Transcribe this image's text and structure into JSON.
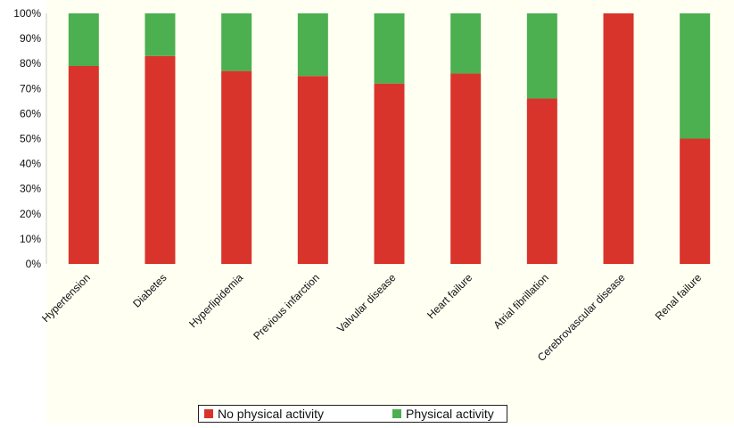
{
  "chart_data": {
    "type": "bar",
    "stacked": true,
    "categories": [
      "Hypertension",
      "Diabetes",
      "Hyperlipidemia",
      "Previous infarction",
      "Valvular disease",
      "Heart failure",
      "Atrial fibrillation",
      "Cerebrovascular disease",
      "Renal failure"
    ],
    "series": [
      {
        "name": "No physical activity",
        "color": "#d8342b",
        "values": [
          79,
          83,
          77,
          75,
          72,
          76,
          66,
          100,
          50
        ]
      },
      {
        "name": "Physical activity",
        "color": "#4caf50",
        "values": [
          21,
          17,
          23,
          25,
          28,
          24,
          34,
          0,
          50
        ]
      }
    ],
    "yticks": [
      "0%",
      "10%",
      "20%",
      "30%",
      "40%",
      "50%",
      "60%",
      "70%",
      "80%",
      "90%",
      "100%"
    ],
    "ylim": [
      0,
      100
    ],
    "grid": false,
    "legend_position": "bottom",
    "title": "",
    "xlabel": "",
    "ylabel": "",
    "plot_background": "#fffff2"
  }
}
